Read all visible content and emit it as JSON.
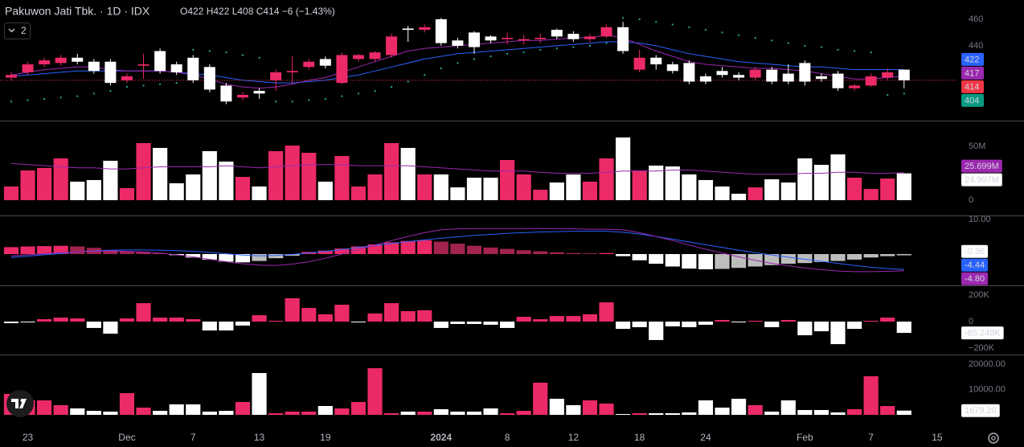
{
  "chart_data": [
    {
      "type": "candlestick",
      "title": "Pakuwon Jati Tbk. · 1D · IDX",
      "ohlc": "O422 H422 L408 C414 −6 (−1.43%)",
      "indicator_count": 2,
      "xlim": [
        -0.68,
        57.17
      ],
      "xticks": [
        {
          "value": 1,
          "label": "23"
        },
        {
          "value": 7,
          "label": "Dec"
        },
        {
          "value": 11,
          "label": "7"
        },
        {
          "value": 15,
          "label": "13"
        },
        {
          "value": 19,
          "label": "19"
        },
        {
          "value": 26,
          "label": "2024"
        },
        {
          "value": 30,
          "label": "8"
        },
        {
          "value": 34,
          "label": "12"
        },
        {
          "value": 38,
          "label": "18"
        },
        {
          "value": 42,
          "label": "24"
        },
        {
          "value": 48,
          "label": "Feb"
        },
        {
          "value": 52,
          "label": "7"
        },
        {
          "value": 56,
          "label": "15"
        }
      ],
      "ylim": [
        383.6,
        474.5
      ],
      "yticks": [
        460,
        440
      ],
      "up_color": "#ec2a67",
      "down_color": "#ffffff",
      "open": [
        416,
        420,
        426,
        427,
        431,
        428,
        428,
        414,
        425,
        436,
        426,
        431,
        424,
        410,
        401,
        406,
        414,
        420,
        424,
        430,
        412,
        430,
        430,
        433,
        453,
        452,
        460,
        444,
        450,
        447,
        445,
        444,
        445,
        452,
        449,
        445,
        447,
        454,
        422,
        431,
        426,
        427,
        417,
        421,
        418,
        416,
        422,
        419,
        427,
        417,
        419,
        408,
        410,
        416,
        422
      ],
      "high": [
        420,
        428,
        431,
        433,
        434,
        430,
        430,
        419,
        434,
        438,
        428,
        433,
        426,
        412,
        405,
        408,
        422,
        432,
        430,
        432,
        435,
        434,
        436,
        449,
        455,
        456,
        461,
        446,
        451,
        448,
        450,
        448,
        449,
        453,
        451,
        449,
        456,
        458,
        437,
        433,
        428,
        429,
        419,
        424,
        420,
        424,
        424,
        426,
        429,
        419,
        421,
        411,
        419,
        423,
        422
      ],
      "low": [
        414,
        418,
        424,
        425,
        426,
        419,
        410,
        412,
        415,
        419,
        418,
        412,
        405,
        396,
        399,
        400,
        406,
        411,
        422,
        423,
        411,
        428,
        428,
        431,
        443,
        450,
        440,
        438,
        434,
        442,
        441,
        441,
        442,
        445,
        443,
        443,
        446,
        434,
        420,
        422,
        419,
        411,
        411,
        416,
        414,
        414,
        411,
        411,
        410,
        413,
        406,
        406,
        409,
        414,
        408
      ],
      "close": [
        418,
        426,
        429,
        431,
        428,
        421,
        412,
        417,
        426,
        421,
        420,
        414,
        407,
        398,
        403,
        404,
        420,
        421,
        428,
        425,
        433,
        433,
        435,
        447,
        452,
        454,
        442,
        440,
        439,
        444,
        446,
        445,
        446,
        447,
        445,
        447,
        454,
        436,
        431,
        426,
        421,
        413,
        413,
        418,
        416,
        422,
        413,
        413,
        413,
        415,
        408,
        410,
        417,
        420,
        414
      ],
      "overlays": [
        {
          "color": "#9c27b0",
          "values": [
            418,
            420,
            422,
            423,
            424,
            424,
            422,
            421,
            421,
            421,
            420,
            418,
            415,
            411,
            409,
            408,
            409,
            411,
            414,
            416,
            420,
            424,
            428,
            432,
            436,
            438,
            439,
            440,
            441,
            442,
            443,
            444,
            444,
            445,
            446,
            446,
            448,
            446,
            441,
            436,
            432,
            428,
            426,
            425,
            424,
            423,
            423,
            422,
            421,
            419,
            417,
            415,
            415,
            416,
            417
          ]
        },
        {
          "color": "#2962ff",
          "values": [
            417,
            418,
            419,
            420,
            421,
            421,
            421,
            421,
            421,
            421,
            420,
            419,
            418,
            416,
            414,
            413,
            412,
            412,
            413,
            414,
            416,
            418,
            421,
            424,
            427,
            430,
            432,
            434,
            435,
            436,
            437,
            438,
            439,
            440,
            441,
            442,
            443,
            443,
            442,
            440,
            437,
            434,
            432,
            430,
            428,
            427,
            426,
            425,
            424,
            424,
            423,
            422,
            422,
            422,
            422
          ]
        }
      ],
      "sar": {
        "color": "#26a69a",
        "values": [
          398,
          399,
          400,
          401,
          402,
          404,
          406,
          409,
          410,
          411,
          412,
          437,
          436,
          435,
          433,
          431,
          398,
          398,
          399,
          400,
          402,
          404,
          406,
          409,
          413,
          418,
          423,
          427,
          430,
          432,
          434,
          435,
          437,
          438,
          439,
          440,
          442,
          461,
          460,
          458,
          456,
          454,
          452,
          450,
          448,
          446,
          444,
          442,
          440,
          439,
          437,
          436,
          435,
          403,
          404
        ]
      },
      "close_line_color": "#f23645",
      "badges": [
        {
          "value": 422,
          "color": "#2962ff"
        },
        {
          "value": 417,
          "color": "#9c27b0"
        },
        {
          "value": 414,
          "color": "#f23645"
        },
        {
          "value": 404,
          "color": "#089981"
        }
      ]
    },
    {
      "type": "bar",
      "values": [
        12700000,
        27600000,
        29900000,
        38800000,
        17200000,
        18700000,
        36600000,
        11200000,
        53000000,
        48500000,
        15700000,
        23900000,
        45500000,
        35800000,
        21600000,
        12700000,
        45500000,
        50700000,
        44000000,
        17200000,
        41000000,
        12700000,
        23900000,
        53000000,
        48500000,
        23900000,
        23900000,
        11900000,
        20900000,
        20900000,
        37300000,
        23900000,
        9700000,
        16400000,
        23900000,
        17200000,
        38800000,
        58200000,
        27600000,
        32100000,
        31300000,
        23900000,
        18700000,
        12700000,
        6000000,
        11900000,
        19400000,
        16400000,
        38800000,
        32800000,
        42500000,
        20900000,
        10400000,
        20100000,
        24907000
      ],
      "ma": {
        "color": "#9c27b0",
        "values": [
          34000000,
          33000000,
          32000000,
          31000000,
          30000000,
          30000000,
          29000000,
          29000000,
          30000000,
          31000000,
          31000000,
          31000000,
          31000000,
          32000000,
          31000000,
          30000000,
          31000000,
          32000000,
          33000000,
          33000000,
          33000000,
          32000000,
          32000000,
          32000000,
          32000000,
          31000000,
          30000000,
          29000000,
          28000000,
          27000000,
          27000000,
          27000000,
          26000000,
          25000000,
          25000000,
          25000000,
          26000000,
          27000000,
          27000000,
          27000000,
          28000000,
          28000000,
          27000000,
          26000000,
          25000000,
          24000000,
          24000000,
          24000000,
          25000000,
          25000000,
          26000000,
          26000000,
          25000000,
          25000000,
          25699000
        ]
      },
      "ylim": [
        -12690000,
        72390000
      ],
      "yticks": [
        {
          "value": 50000000,
          "label": "50M"
        },
        0
      ],
      "badges": [
        {
          "value": 25699000,
          "label": "25.699M",
          "color": "#9c27b0"
        },
        {
          "value": 24907000,
          "label": "24.907M",
          "color": "#ffffff"
        }
      ]
    },
    {
      "type": "macd",
      "histogram": [
        2.0,
        2.2,
        2.3,
        2.4,
        2.2,
        1.8,
        1.2,
        0.8,
        0.6,
        0.3,
        -0.3,
        -1.0,
        -1.6,
        -2.2,
        -2.4,
        -2.0,
        -1.2,
        -0.5,
        0.6,
        1.0,
        1.6,
        2.2,
        2.8,
        3.4,
        3.8,
        4.0,
        3.6,
        3.0,
        2.4,
        1.9,
        1.5,
        1.1,
        0.8,
        0.5,
        0.3,
        0.2,
        0.3,
        -0.6,
        -1.8,
        -2.8,
        -3.6,
        -4.2,
        -4.4,
        -4.3,
        -4.0,
        -3.6,
        -3.2,
        -2.8,
        -2.6,
        -2.3,
        -2.0,
        -1.6,
        -1.0,
        -0.6,
        -0.36
      ],
      "macd": {
        "color": "#2962ff",
        "values": [
          -1.0,
          -0.6,
          -0.2,
          0.2,
          0.6,
          0.9,
          1.1,
          1.2,
          1.2,
          1.1,
          1.0,
          0.8,
          0.5,
          0.1,
          -0.3,
          -0.5,
          -0.4,
          -0.1,
          0.3,
          0.8,
          1.3,
          1.9,
          2.5,
          3.1,
          3.6,
          4.1,
          4.6,
          5.0,
          5.4,
          5.7,
          6.0,
          6.2,
          6.4,
          6.5,
          6.6,
          6.6,
          6.6,
          6.3,
          5.8,
          5.1,
          4.3,
          3.5,
          2.7,
          1.9,
          1.1,
          0.4,
          -0.3,
          -0.9,
          -1.5,
          -2.1,
          -2.7,
          -3.3,
          -3.8,
          -4.2,
          -4.44
        ]
      },
      "signal": {
        "color": "#9c27b0",
        "values": [
          -0.5,
          -0.2,
          0.1,
          0.4,
          0.6,
          0.8,
          0.9,
          0.8,
          0.6,
          0.3,
          -0.2,
          -0.8,
          -1.5,
          -2.2,
          -2.8,
          -3.2,
          -3.3,
          -2.9,
          -2.2,
          -1.2,
          0.0,
          1.3,
          2.6,
          3.9,
          5.1,
          6.2,
          7.0,
          7.3,
          7.4,
          7.4,
          7.4,
          7.4,
          7.4,
          7.3,
          7.3,
          7.2,
          7.2,
          7.0,
          6.2,
          5.1,
          3.9,
          2.6,
          1.4,
          0.3,
          -0.8,
          -1.8,
          -2.7,
          -3.4,
          -4.0,
          -4.5,
          -4.9,
          -5.1,
          -5.1,
          -5.0,
          -4.8
        ]
      },
      "rising_above": "#ec2a67",
      "falling_above": "#a3234f",
      "falling_below": "#ffffff",
      "rising_below": "#bdbdbd",
      "ylim": [
        -8.6,
        10.7
      ],
      "yticks": [
        {
          "value": 10,
          "label": "10.00"
        }
      ],
      "badges": [
        {
          "value": -0.36,
          "color": "#ffffff"
        },
        {
          "value": -4.44,
          "color": "#2962ff"
        },
        {
          "value": -4.8,
          "label": "-4.80",
          "color": "#9c27b0"
        }
      ]
    },
    {
      "type": "histogram",
      "values": [
        -12000,
        -6000,
        18000,
        30000,
        24000,
        -48000,
        -91000,
        24000,
        139000,
        30000,
        30000,
        18000,
        -67000,
        -67000,
        -30000,
        48000,
        6000,
        176000,
        103000,
        55000,
        127000,
        -6000,
        61000,
        139000,
        79000,
        85000,
        -48000,
        -18000,
        -18000,
        -24000,
        -48000,
        36000,
        18000,
        42000,
        42000,
        55000,
        145000,
        -55000,
        -42000,
        -139000,
        -36000,
        -42000,
        -24000,
        12000,
        -6000,
        6000,
        -42000,
        12000,
        -103000,
        -73000,
        -170000,
        -55000,
        6000,
        30000,
        -85248
      ],
      "positive_color": "#ec2a67",
      "negative_color": "#ffffff",
      "ylim": [
        -242400,
        260600
      ],
      "yticks": [
        {
          "value": 200000,
          "label": "200K"
        },
        0,
        {
          "value": -200000,
          "label": "−200K"
        }
      ],
      "badges": [
        {
          "value": -85248,
          "label": "-85.248K",
          "color": "#ffffff"
        }
      ]
    },
    {
      "type": "bar",
      "values": [
        8255,
        5715,
        5715,
        3810,
        2540,
        1588,
        1270,
        8573,
        2858,
        1588,
        4128,
        4128,
        1270,
        1588,
        5080,
        16510,
        635,
        1270,
        1270,
        3493,
        2540,
        5080,
        18415,
        635,
        1270,
        1270,
        2223,
        1270,
        1270,
        2540,
        635,
        1588,
        12700,
        6350,
        3810,
        5715,
        4445,
        318,
        635,
        635,
        635,
        953,
        5715,
        2858,
        6350,
        3810,
        1270,
        5715,
        1905,
        1905,
        953,
        2223,
        15240,
        3493,
        1679.2
      ],
      "ylim": [
        -4444,
        23175
      ],
      "yticks": [
        {
          "value": 20000,
          "label": "20000.00"
        },
        {
          "value": 10000,
          "label": "10000.00"
        }
      ],
      "badges": [
        {
          "value": 1679.2,
          "label": "1679.20",
          "color": "#ffffff"
        }
      ]
    }
  ]
}
